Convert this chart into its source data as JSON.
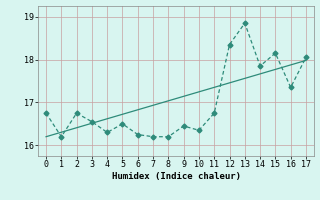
{
  "x": [
    0,
    1,
    2,
    3,
    4,
    5,
    6,
    7,
    8,
    9,
    10,
    11,
    12,
    13,
    14,
    15,
    16,
    17
  ],
  "y": [
    16.75,
    16.2,
    16.75,
    16.55,
    16.3,
    16.5,
    16.25,
    16.2,
    16.2,
    16.45,
    16.35,
    16.75,
    18.35,
    18.85,
    17.85,
    18.15,
    17.35,
    18.05
  ],
  "trend_x": [
    0,
    17
  ],
  "trend_y": [
    16.2,
    17.98
  ],
  "line_color": "#2e8b7a",
  "bg_color": "#d8f5f0",
  "grid_color": "#b8e0d8",
  "xlabel": "Humidex (Indice chaleur)",
  "ylim": [
    15.75,
    19.25
  ],
  "xlim": [
    -0.5,
    17.5
  ],
  "yticks": [
    16,
    17,
    18,
    19
  ],
  "xticks": [
    0,
    1,
    2,
    3,
    4,
    5,
    6,
    7,
    8,
    9,
    10,
    11,
    12,
    13,
    14,
    15,
    16,
    17
  ]
}
